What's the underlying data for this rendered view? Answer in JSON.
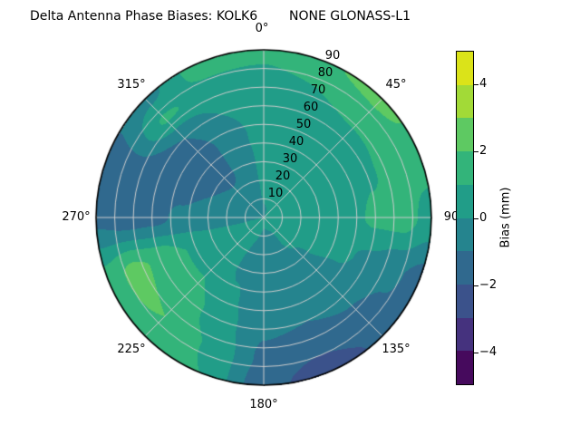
{
  "figure": {
    "title_left": "Delta Antenna Phase Biases: KOLK6",
    "title_right": "NONE GLONASS-L1",
    "background": "#ffffff"
  },
  "chart_data": {
    "type": "heatmap",
    "projection": "polar",
    "title": "Delta Antenna Phase Biases: KOLK6          NONE GLONASS-L1",
    "angular_tick_labels": [
      "0°",
      "45°",
      "90",
      "135°",
      "180°",
      "225°",
      "270°",
      "315°"
    ],
    "angular_tick_values_deg": [
      0,
      45,
      90,
      135,
      180,
      225,
      270,
      315
    ],
    "radial_tick_labels": [
      "10",
      "20",
      "30",
      "40",
      "50",
      "60",
      "70",
      "80",
      "90"
    ],
    "radial_range": [
      0,
      90
    ],
    "radial_label_azimuth_deg": 22.5,
    "grid": true,
    "grid_color": "#cdcdcd",
    "outline_color": "#000000",
    "levels": {
      "min": -5,
      "max": 5,
      "step": 1
    },
    "band_colors": [
      "#460a5d",
      "#45327e",
      "#3b528b",
      "#30698e",
      "#25848e",
      "#219d88",
      "#33b47a",
      "#5ec962",
      "#a2da37",
      "#dbe319"
    ],
    "azimuth_deg": [
      0,
      22.5,
      45,
      67.5,
      90,
      112.5,
      135,
      157.5,
      180,
      202.5,
      225,
      247.5,
      270,
      292.5,
      315,
      337.5,
      360
    ],
    "zenith_deg": [
      0,
      15,
      30,
      45,
      60,
      75,
      90
    ],
    "bias_mm": [
      [
        -0.2,
        0.2,
        0.4,
        0.5,
        0.6,
        0.8,
        1.2
      ],
      [
        0.0,
        0.3,
        0.5,
        0.5,
        0.6,
        1.0,
        1.9
      ],
      [
        0.2,
        0.4,
        0.5,
        0.5,
        0.7,
        1.3,
        2.4
      ],
      [
        0.3,
        0.5,
        0.5,
        0.5,
        0.9,
        1.3,
        1.5
      ],
      [
        0.3,
        0.5,
        0.5,
        0.6,
        1.2,
        1.4,
        0.6
      ],
      [
        0.3,
        0.4,
        0.3,
        0.2,
        -0.2,
        -0.8,
        -1.4
      ],
      [
        0.2,
        0.1,
        -0.1,
        -0.4,
        -0.8,
        -1.3,
        -1.8
      ],
      [
        0.1,
        -0.1,
        -0.3,
        -0.6,
        -1.0,
        -1.8,
        -2.7
      ],
      [
        0.1,
        -0.2,
        -0.4,
        -0.6,
        -0.9,
        -1.2,
        -1.6
      ],
      [
        0.2,
        0.0,
        -0.1,
        0.1,
        0.4,
        0.9,
        1.0
      ],
      [
        0.3,
        0.3,
        0.5,
        1.0,
        1.6,
        2.0,
        1.7
      ],
      [
        0.2,
        0.2,
        0.4,
        1.0,
        1.8,
        2.3,
        1.4
      ],
      [
        -0.1,
        -0.3,
        -0.5,
        -0.8,
        -1.3,
        -1.5,
        -1.2
      ],
      [
        -0.3,
        -0.6,
        -1.0,
        -1.4,
        -1.6,
        -1.2,
        -1.3
      ],
      [
        -0.4,
        -0.7,
        -1.2,
        -1.5,
        -1.0,
        1.1,
        -0.3
      ],
      [
        -0.3,
        -0.6,
        -0.8,
        -0.5,
        0.0,
        0.7,
        1.5
      ],
      [
        -0.2,
        0.2,
        0.4,
        0.5,
        0.6,
        0.8,
        1.2
      ]
    ],
    "colorbar": {
      "label": "Bias (mm)",
      "tick_labels": [
        "4",
        "2",
        "0",
        "−2",
        "−4"
      ],
      "tick_values": [
        4,
        2,
        0,
        -2,
        -4
      ]
    }
  }
}
